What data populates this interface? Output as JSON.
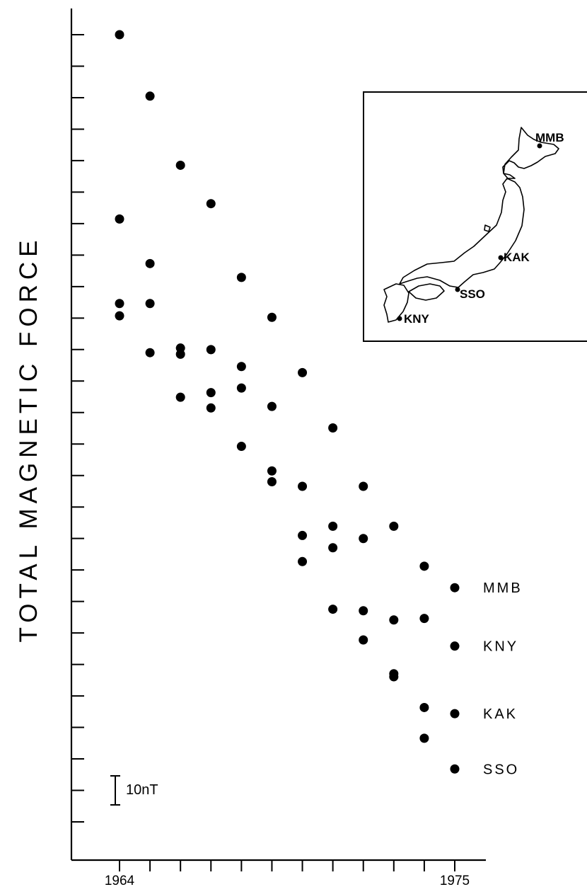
{
  "chart_data": {
    "type": "scatter",
    "title": "",
    "ylabel": "TOTAL MAGNETIC FORCE",
    "xlabel": "",
    "x_tick_labels": [
      "1964",
      "1975"
    ],
    "xlim": [
      1964,
      1976
    ],
    "y_tick_count": 26,
    "grid": false,
    "legend_placement": "bottom-right",
    "scale_bar": {
      "label": "10nT",
      "value": 10
    },
    "series": [
      {
        "name": "MMB",
        "x": [
          1964,
          1965,
          1966,
          1967,
          1968,
          1969,
          1970,
          1971,
          1972,
          1973,
          1974,
          1975
        ],
        "y": [
          1205,
          1185,
          1162.5,
          1150,
          1126,
          1113,
          1095,
          1077,
          1058,
          1045,
          1032,
          1025
        ]
      },
      {
        "name": "KAK",
        "x": [
          1964,
          1965,
          1966,
          1967,
          1968,
          1969,
          1970,
          1971,
          1972,
          1973,
          1974,
          1975
        ],
        "y": [
          1145,
          1130.5,
          1101,
          1083.5,
          1071,
          1059.5,
          1033.5,
          1018,
          1008,
          997,
          986,
          984
        ]
      },
      {
        "name": "SSO",
        "x": [
          1964,
          1965,
          1966,
          1967,
          1968,
          1969,
          1970,
          1971,
          1972,
          1973,
          1974,
          1975
        ],
        "y": [
          1113.5,
          1117.5,
          1103,
          1102.5,
          1097,
          1084,
          1058,
          1045,
          1041,
          996,
          976,
          966
        ]
      },
      {
        "name": "KNY",
        "x": [
          1964,
          1965,
          1966,
          1967,
          1968,
          1969,
          1970,
          1971,
          1972,
          1973,
          1974,
          1975
        ],
        "y": [
          1117.5,
          1101.5,
          1087,
          1088.5,
          1090,
          1063,
          1042,
          1038,
          1017.5,
          1014.5,
          1015,
          1006
        ]
      }
    ]
  },
  "inset_map": {
    "stations": [
      "MMB",
      "KAK",
      "SSO",
      "KNY"
    ]
  }
}
